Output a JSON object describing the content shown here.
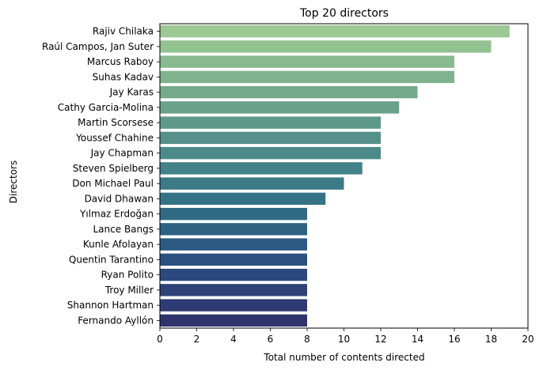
{
  "chart_data": {
    "type": "bar",
    "orientation": "horizontal",
    "title": "Top 20 directors",
    "xlabel": "Total number of contents directed",
    "ylabel": "Directors",
    "xlim": [
      0,
      20
    ],
    "xticks": [
      0,
      2,
      4,
      6,
      8,
      10,
      12,
      14,
      16,
      18,
      20
    ],
    "grid": false,
    "palette": "crest",
    "categories": [
      "Rajiv Chilaka",
      "Raúl Campos, Jan Suter",
      "Marcus Raboy",
      "Suhas Kadav",
      "Jay Karas",
      "Cathy Garcia-Molina",
      "Martin Scorsese",
      "Youssef Chahine",
      "Jay Chapman",
      "Steven Spielberg",
      "Don Michael Paul",
      "David Dhawan",
      "Yılmaz Erdoğan",
      "Lance Bangs",
      "Kunle Afolayan",
      "Quentin Tarantino",
      "Ryan Polito",
      "Troy Miller",
      "Shannon Hartman",
      "Fernando Ayllón"
    ],
    "values": [
      19,
      18,
      16,
      16,
      14,
      13,
      12,
      12,
      12,
      11,
      10,
      9,
      8,
      8,
      8,
      8,
      8,
      8,
      8,
      8
    ],
    "colors": [
      "#9cc894",
      "#93c291",
      "#89b98f",
      "#80b28d",
      "#75a98b",
      "#6aa18b",
      "#5f998a",
      "#55918a",
      "#4b8a89",
      "#428288",
      "#3b7a87",
      "#367285",
      "#316a84",
      "#2d6283",
      "#2b5a82",
      "#2b5180",
      "#2c497d",
      "#2e4279",
      "#2f3b74",
      "#2f346c"
    ]
  }
}
